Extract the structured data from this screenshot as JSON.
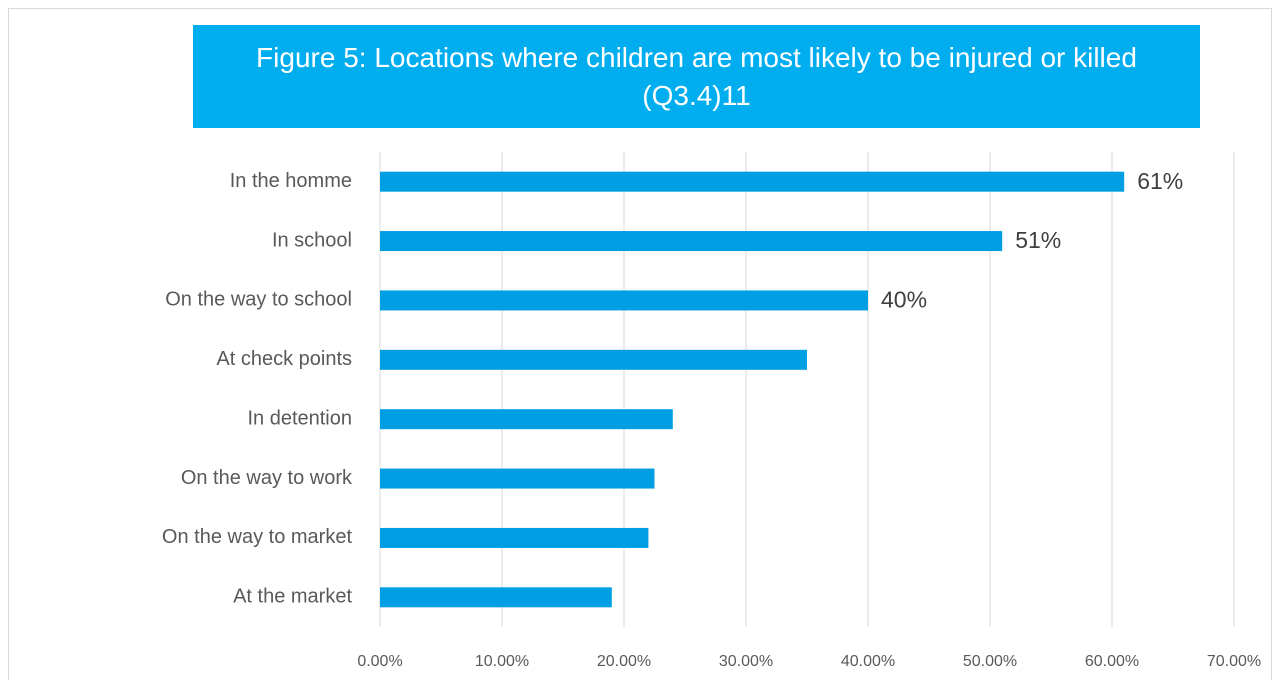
{
  "chart_data": {
    "type": "hbar",
    "title": "Figure 5: Locations where children are most likely to be injured or killed (Q3.4)11",
    "categories": [
      "In the homme",
      "In school",
      "On the way to school",
      "At check points",
      "In detention",
      "On the way to work",
      "On the way to market",
      "At the market"
    ],
    "values": [
      61,
      51,
      40,
      35,
      24,
      22.5,
      22,
      19
    ],
    "value_labels": [
      "61%",
      "51%",
      "40%",
      null,
      null,
      null,
      null,
      null
    ],
    "color": "#009fe3",
    "xlim": [
      0,
      70
    ],
    "xticks": [
      {
        "value": 0,
        "label": "0.00%"
      },
      {
        "value": 10,
        "label": "10.00%"
      },
      {
        "value": 20,
        "label": "20.00%"
      },
      {
        "value": 30,
        "label": "30.00%"
      },
      {
        "value": 40,
        "label": "40.00%"
      },
      {
        "value": 50,
        "label": "50.00%"
      },
      {
        "value": 60,
        "label": "60.00%"
      },
      {
        "value": 70,
        "label": "70.00%"
      }
    ],
    "grid": true
  }
}
